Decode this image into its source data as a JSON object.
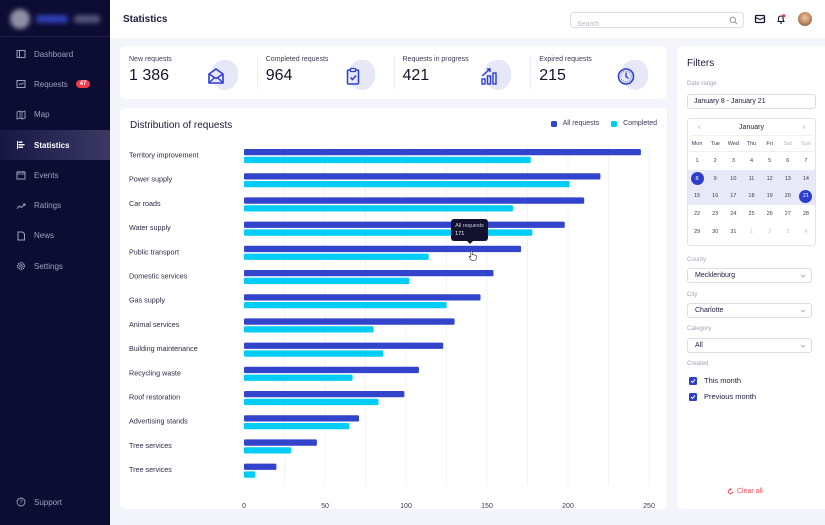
{
  "app": {
    "logo_text": "blurred logo"
  },
  "sidebar": {
    "items": [
      {
        "label": "Dashboard",
        "icon": "dashboard-icon",
        "active": false
      },
      {
        "label": "Requests",
        "icon": "requests-icon",
        "badge": "47",
        "active": false
      },
      {
        "label": "Map",
        "icon": "map-icon",
        "active": false
      },
      {
        "label": "Statistics",
        "icon": "statistics-icon",
        "active": true
      },
      {
        "label": "Events",
        "icon": "calendar-icon",
        "active": false
      },
      {
        "label": "Ratings",
        "icon": "trend-icon",
        "active": false
      },
      {
        "label": "News",
        "icon": "document-icon",
        "active": false
      },
      {
        "label": "Settings",
        "icon": "gear-icon",
        "active": false
      }
    ],
    "support_label": "Support"
  },
  "header": {
    "title": "Statistics",
    "search_placeholder": "Search",
    "search_value": ""
  },
  "stats": [
    {
      "label": "New requests",
      "value": "1 386",
      "icon": "envelope-icon"
    },
    {
      "label": "Completed requests",
      "value": "964",
      "icon": "clipboard-check-icon"
    },
    {
      "label": "Requests in progress",
      "value": "421",
      "icon": "bar-chart-growth-icon"
    },
    {
      "label": "Expired requests",
      "value": "215",
      "icon": "clock-icon"
    }
  ],
  "colors": {
    "sidebar_bg": "#0d0c33",
    "all_requests": "#3344cc",
    "completed": "#00ccf5",
    "accent": "#2e3ecb",
    "danger": "#f0505e"
  },
  "chart": {
    "title": "Distribution of  requests",
    "legend": [
      "All requests",
      "Completed"
    ],
    "tooltip": {
      "label": "All requests",
      "value": "171"
    }
  },
  "chart_data": {
    "type": "bar",
    "orientation": "horizontal",
    "title": "Distribution of  requests",
    "xlabel": "",
    "ylabel": "",
    "xlim": [
      0,
      250
    ],
    "x_ticks": [
      0,
      50,
      100,
      150,
      200,
      250
    ],
    "grid": true,
    "grid_step": 25,
    "legend_position": "top-right",
    "categories": [
      "Territory improvement",
      "Power supply",
      "Car roads",
      "Water supply",
      "Public transport",
      "Domestic services",
      "Gas supply",
      "Animal services",
      "Building maintenance",
      "Recycling waste",
      "Roof restoration",
      "Advertising stands",
      "Tree services",
      "Tree services"
    ],
    "series": [
      {
        "name": "All requests",
        "color": "#3344cc",
        "values": [
          245,
          220,
          210,
          198,
          171,
          154,
          146,
          130,
          123,
          108,
          99,
          71,
          45,
          20
        ]
      },
      {
        "name": "Completed",
        "color": "#00ccf5",
        "values": [
          177,
          201,
          166,
          178,
          114,
          102,
          125,
          80,
          86,
          67,
          83,
          65,
          29,
          7
        ]
      }
    ],
    "annotations": [
      {
        "type": "tooltip",
        "category": "Public transport",
        "series": "All requests",
        "text": "All requests 171"
      }
    ]
  },
  "filters": {
    "title": "Filters",
    "date_range_label": "Date range",
    "date_range_value": "January 8 - January 21",
    "calendar": {
      "month": "January",
      "prev_icon": "‹",
      "next_icon": "›",
      "weekdays": [
        "Mon",
        "Tue",
        "Wed",
        "Thu",
        "Fri",
        "Sat",
        "Sun"
      ],
      "weeks": [
        [
          "1",
          "2",
          "3",
          "4",
          "5",
          "6",
          "7"
        ],
        [
          "8",
          "9",
          "10",
          "11",
          "12",
          "13",
          "14"
        ],
        [
          "15",
          "16",
          "17",
          "18",
          "19",
          "20",
          "21"
        ],
        [
          "22",
          "23",
          "24",
          "25",
          "26",
          "27",
          "28"
        ],
        [
          "29",
          "30",
          "31",
          "1",
          "2",
          "3",
          "4"
        ]
      ],
      "range_start": "8",
      "range_end": "21"
    },
    "county_label": "County",
    "county_value": "Mecklenburg",
    "city_label": "City",
    "city_value": "Charlotte",
    "category_label": "Category",
    "category_value": "All",
    "created_label": "Created",
    "created_options": [
      {
        "label": "This month",
        "checked": true
      },
      {
        "label": "Previous month",
        "checked": true
      }
    ],
    "clear_all_label": "Clear all"
  }
}
